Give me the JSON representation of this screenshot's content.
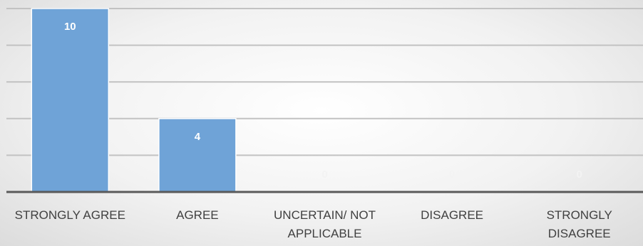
{
  "chart_data": {
    "type": "bar",
    "categories": [
      [
        "STRONGLY AGREE"
      ],
      [
        "AGREE"
      ],
      [
        "UNCERTAIN/ NOT",
        "APPLICABLE"
      ],
      [
        "DISAGREE"
      ],
      [
        "STRONGLY",
        "DISAGREE"
      ]
    ],
    "values": [
      10,
      4,
      0,
      0,
      0
    ],
    "ylim": [
      0,
      10
    ],
    "gridlines": [
      0,
      2,
      4,
      6,
      8,
      10
    ],
    "grid": true,
    "data_labels": true,
    "legend": "none",
    "colors": {
      "bar": "#6fa3d7",
      "grid": "#c2c2c2",
      "axis": "#5a5a5a",
      "label": "#404040"
    }
  }
}
